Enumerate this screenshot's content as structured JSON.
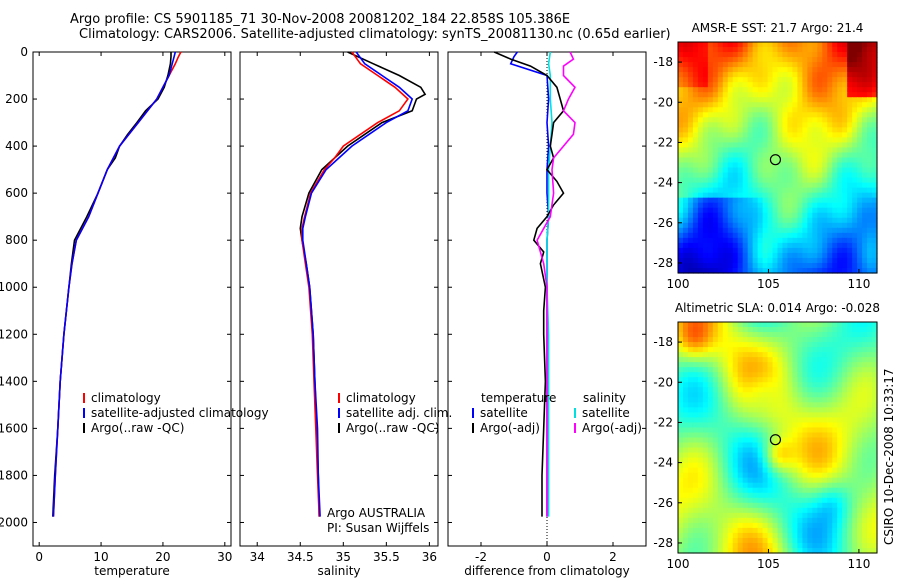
{
  "header": {
    "line1": "Argo profile: CS 5901185_71 30-Nov-2008 20081202_184 22.858S 105.386E",
    "line2": "Climatology: CARS2006. Satellite-adjusted climatology: synTS_20081130.nc (0.65d earlier)"
  },
  "side_label": "CSIRO 10-Dec-2008 10:33:17",
  "colors": {
    "climatology": "#ff0000",
    "satellite": "#0000ff",
    "argo": "#000000",
    "sat_salinity": "#00e0e0",
    "argo_salinity": "#ff00ff"
  },
  "chart_data": [
    {
      "type": "line",
      "id": "temperature",
      "xlabel": "temperature",
      "ylabel": "",
      "xlim": [
        -1,
        31
      ],
      "ylim": [
        2100,
        0
      ],
      "xticks": [
        0,
        10,
        20,
        30
      ],
      "yticks": [
        0,
        200,
        400,
        600,
        800,
        1000,
        1200,
        1400,
        1600,
        1800,
        2000
      ],
      "legend": [
        "climatology",
        "satellite-adjusted climatology",
        "Argo(..raw -QC)"
      ],
      "series": [
        {
          "name": "climatology",
          "color": "#ff0000",
          "depth": [
            0,
            20,
            50,
            100,
            150,
            200,
            300,
            400,
            500,
            600,
            700,
            800,
            900,
            1000,
            1200,
            1400,
            1600,
            1800,
            1975
          ],
          "values": [
            22.9,
            22.5,
            22.0,
            21.0,
            20.0,
            19.0,
            16.0,
            13.0,
            11.0,
            9.5,
            8.0,
            6.0,
            5.3,
            4.8,
            4.0,
            3.4,
            3.0,
            2.6,
            2.3
          ]
        },
        {
          "name": "satellite",
          "color": "#0000ff",
          "depth": [
            0,
            20,
            50,
            100,
            150,
            200,
            300,
            400,
            500,
            600,
            700,
            800,
            900,
            1000,
            1200,
            1400,
            1600,
            1800,
            1975
          ],
          "values": [
            22.0,
            21.8,
            21.5,
            21.0,
            20.0,
            19.0,
            16.0,
            13.0,
            11.0,
            9.5,
            8.0,
            6.0,
            5.3,
            4.8,
            4.0,
            3.4,
            3.0,
            2.6,
            2.3
          ]
        },
        {
          "name": "Argo",
          "color": "#000000",
          "depth": [
            0,
            20,
            50,
            100,
            150,
            200,
            250,
            300,
            350,
            400,
            450,
            500,
            600,
            700,
            800,
            900,
            1000,
            1200,
            1400,
            1600,
            1800,
            1975
          ],
          "values": [
            21.3,
            21.3,
            21.2,
            20.8,
            20.2,
            19.2,
            17.2,
            15.8,
            14.3,
            13.0,
            12.3,
            11.0,
            9.5,
            7.7,
            5.7,
            5.2,
            4.8,
            4.0,
            3.4,
            3.0,
            2.5,
            2.2
          ]
        }
      ]
    },
    {
      "type": "line",
      "id": "salinity",
      "xlabel": "salinity",
      "xlim": [
        33.8,
        36.1
      ],
      "ylim": [
        2100,
        0
      ],
      "xticks": [
        34,
        34.5,
        35,
        35.5,
        36
      ],
      "yticks": [
        0,
        200,
        400,
        600,
        800,
        1000,
        1200,
        1400,
        1600,
        1800,
        2000
      ],
      "legend": [
        "climatology",
        "satellite adj. clim.",
        "Argo(..raw -QC)"
      ],
      "annotation": [
        "Argo AUSTRALIA",
        "PI: Susan Wijffels"
      ],
      "series": [
        {
          "name": "climatology",
          "color": "#ff0000",
          "depth": [
            0,
            50,
            100,
            150,
            200,
            250,
            300,
            350,
            400,
            450,
            500,
            600,
            700,
            750,
            800,
            900,
            1000,
            1200,
            1400,
            1600,
            1800,
            1975
          ],
          "values": [
            35.1,
            35.2,
            35.4,
            35.6,
            35.75,
            35.65,
            35.4,
            35.2,
            35.0,
            34.9,
            34.78,
            34.62,
            34.55,
            34.52,
            34.52,
            34.56,
            34.6,
            34.64,
            34.66,
            34.68,
            34.7,
            34.72
          ]
        },
        {
          "name": "satellite",
          "color": "#0000ff",
          "depth": [
            0,
            50,
            100,
            150,
            200,
            250,
            300,
            350,
            400,
            450,
            500,
            600,
            700,
            750,
            800,
            900,
            1000,
            1200,
            1400,
            1600,
            1800,
            1975
          ],
          "values": [
            35.15,
            35.25,
            35.45,
            35.65,
            35.8,
            35.75,
            35.5,
            35.3,
            35.1,
            34.95,
            34.8,
            34.63,
            34.56,
            34.53,
            34.53,
            34.57,
            34.61,
            34.65,
            34.67,
            34.7,
            34.71,
            34.73
          ]
        },
        {
          "name": "Argo",
          "color": "#000000",
          "depth": [
            0,
            50,
            100,
            150,
            180,
            200,
            250,
            300,
            350,
            400,
            450,
            500,
            600,
            700,
            750,
            800,
            900,
            1000,
            1200,
            1400,
            1600,
            1800,
            1975
          ],
          "values": [
            35.05,
            35.35,
            35.65,
            35.9,
            35.95,
            35.85,
            35.8,
            35.45,
            35.25,
            35.05,
            34.9,
            34.75,
            34.6,
            34.52,
            34.5,
            34.52,
            34.57,
            34.61,
            34.65,
            34.67,
            34.69,
            34.71,
            34.72
          ]
        }
      ]
    },
    {
      "type": "line",
      "id": "difference",
      "xlabel": "difference from climatology",
      "xlim": [
        -3,
        3
      ],
      "ylim": [
        2100,
        0
      ],
      "xticks": [
        -2,
        0,
        2
      ],
      "yticks": [
        0,
        200,
        400,
        600,
        800,
        1000,
        1200,
        1400,
        1600,
        1800,
        2000
      ],
      "legend_left": [
        "temperature",
        "satellite",
        "Argo(-adj)"
      ],
      "legend_right": [
        "salinity",
        "satellite",
        "Argo(-adj)"
      ],
      "series": [
        {
          "name": "temperature satellite",
          "color": "#0000ff",
          "depth": [
            0,
            20,
            50,
            100,
            200,
            300,
            400,
            500,
            600,
            700,
            800,
            900,
            1000,
            1200,
            1400,
            1600,
            1800,
            1975
          ],
          "values": [
            -0.9,
            -1.0,
            -1.1,
            0.0,
            0.05,
            0.0,
            0.05,
            0.0,
            0.0,
            0.05,
            0.0,
            0.0,
            0.0,
            0.0,
            0.0,
            0.0,
            0.0,
            0.0
          ]
        },
        {
          "name": "temperature Argo",
          "color": "#000000",
          "depth": [
            0,
            30,
            60,
            100,
            150,
            200,
            250,
            300,
            350,
            400,
            450,
            500,
            550,
            600,
            650,
            700,
            750,
            800,
            850,
            900,
            1000,
            1100,
            1200,
            1400,
            1600,
            1800,
            1975
          ],
          "values": [
            -1.6,
            -1.1,
            -0.5,
            0.0,
            0.3,
            0.4,
            0.5,
            0.2,
            0.15,
            0.1,
            0.2,
            0.0,
            0.3,
            0.5,
            0.2,
            0.0,
            -0.3,
            -0.4,
            -0.1,
            -0.2,
            -0.05,
            -0.1,
            -0.1,
            -0.05,
            -0.1,
            -0.15,
            -0.15
          ]
        },
        {
          "name": "salinity satellite",
          "color": "#00e0e0",
          "depth": [
            0,
            50,
            100,
            200,
            300,
            400,
            500,
            600,
            700,
            800,
            900,
            1000,
            1200,
            1400,
            1600,
            1800,
            1975
          ],
          "values": [
            0.1,
            0.05,
            0.1,
            0.1,
            0.15,
            0.1,
            0.05,
            0.05,
            0.05,
            0.0,
            0.0,
            0.0,
            0.05,
            0.05,
            0.05,
            0.05,
            0.05
          ]
        },
        {
          "name": "salinity Argo",
          "color": "#ff00ff",
          "depth": [
            0,
            30,
            60,
            100,
            150,
            200,
            250,
            300,
            350,
            400,
            450,
            500,
            600,
            700,
            800,
            900,
            1000,
            1200,
            1400,
            1600,
            1800,
            1975
          ],
          "values": [
            0.7,
            0.8,
            0.5,
            0.5,
            0.85,
            0.65,
            0.5,
            0.85,
            0.8,
            0.5,
            0.2,
            0.15,
            0.2,
            0.1,
            -0.3,
            -0.1,
            0.0,
            0.0,
            0.0,
            0.0,
            0.0,
            0.0
          ]
        }
      ]
    },
    {
      "type": "heatmap",
      "id": "sst_map",
      "title": "AMSR-E SST: 21.7 Argo: 21.4",
      "xlim": [
        100,
        111
      ],
      "ylim": [
        -28.5,
        -17
      ],
      "xticks": [
        100,
        105,
        110
      ],
      "yticks": [
        -18,
        -20,
        -22,
        -24,
        -26,
        -28
      ],
      "marker": [
        105.386,
        -22.858
      ]
    },
    {
      "type": "heatmap",
      "id": "sla_map",
      "title": "Altimetric SLA: 0.014 Argo: -0.028",
      "xlim": [
        100,
        111
      ],
      "ylim": [
        -28.5,
        -17
      ],
      "xticks": [
        100,
        105,
        110
      ],
      "yticks": [
        -18,
        -20,
        -22,
        -24,
        -26,
        -28
      ],
      "marker": [
        105.386,
        -22.858
      ]
    }
  ]
}
